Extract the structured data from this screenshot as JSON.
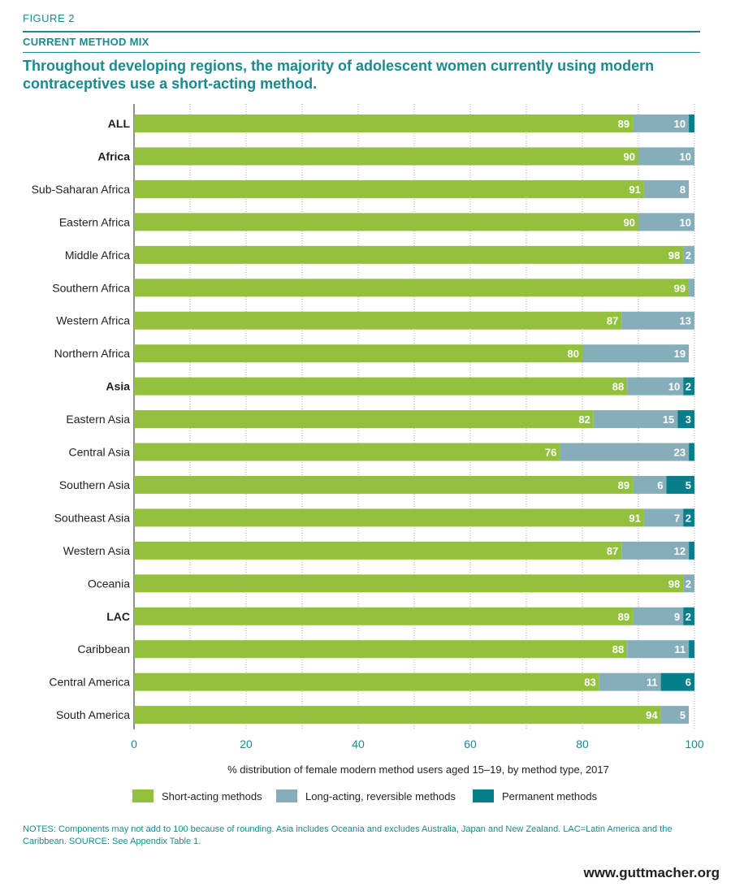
{
  "header": {
    "figure_label": "FIGURE 2",
    "subtitle": "CURRENT METHOD MIX",
    "title": "Throughout developing regions, the majority of adolescent women currently using modern contraceptives use a short-acting method."
  },
  "colors": {
    "short": "#93c13e",
    "long": "#86adba",
    "perm": "#077f8a",
    "accent": "#1a8a8f",
    "grid": "#a9a9a9"
  },
  "chart_data": {
    "type": "bar",
    "orientation": "horizontal",
    "stacked": true,
    "xlabel": "% distribution of female modern method users aged 15–19, by method type, 2017",
    "xlim": [
      0,
      100
    ],
    "xticks": [
      0,
      20,
      40,
      60,
      80,
      100
    ],
    "grid": "vertical dotted",
    "legend_position": "bottom",
    "categories": [
      "ALL",
      "Africa",
      "Sub-Saharan Africa",
      "Eastern Africa",
      "Middle Africa",
      "Southern Africa",
      "Western Africa",
      "Northern Africa",
      "Asia",
      "Eastern Asia",
      "Central Asia",
      "Southern Asia",
      "Southeast Asia",
      "Western Asia",
      "Oceania",
      "LAC",
      "Caribbean",
      "Central America",
      "South America"
    ],
    "bold_categories": [
      "ALL",
      "Africa",
      "Asia",
      "LAC"
    ],
    "series": [
      {
        "name": "Short-acting methods",
        "values": [
          89,
          90,
          91,
          90,
          98,
          99,
          87,
          80,
          88,
          82,
          76,
          89,
          91,
          87,
          98,
          89,
          88,
          83,
          94
        ],
        "labels": [
          "89",
          "90",
          "91",
          "90",
          "98",
          "99",
          "87",
          "80",
          "88",
          "82",
          "76",
          "89",
          "91",
          "87",
          "98",
          "89",
          "88",
          "83",
          "94"
        ]
      },
      {
        "name": "Long-acting, reversible methods",
        "values": [
          10,
          10,
          8,
          10,
          2,
          1,
          13,
          19,
          10,
          15,
          23,
          6,
          7,
          12,
          2,
          9,
          11,
          11,
          5
        ],
        "labels": [
          "10",
          "10",
          "8",
          "10",
          "2",
          "",
          "13",
          "19",
          "10",
          "15",
          "23",
          "6",
          "7",
          "12",
          "2",
          "9",
          "11",
          "11",
          "5"
        ]
      },
      {
        "name": "Permanent methods",
        "values": [
          1,
          0,
          0,
          0,
          0,
          0,
          0,
          0,
          2,
          3,
          1,
          5,
          2,
          1,
          0,
          2,
          1,
          6,
          0
        ],
        "labels": [
          "",
          "",
          "",
          "",
          "",
          "",
          "",
          "",
          "2",
          "3",
          "",
          "5",
          "2",
          "",
          "",
          "2",
          "",
          "6",
          ""
        ]
      }
    ]
  },
  "legend": [
    {
      "label": "Short-acting methods"
    },
    {
      "label": "Long-acting, reversible methods"
    },
    {
      "label": "Permanent methods"
    }
  ],
  "notes": "NOTES: Components may not add to 100 because of rounding. Asia includes Oceania and excludes Australia, Japan and New Zealand. LAC=Latin America and the Caribbean. SOURCE: See Appendix Table 1.",
  "website": "www.guttmacher.org"
}
